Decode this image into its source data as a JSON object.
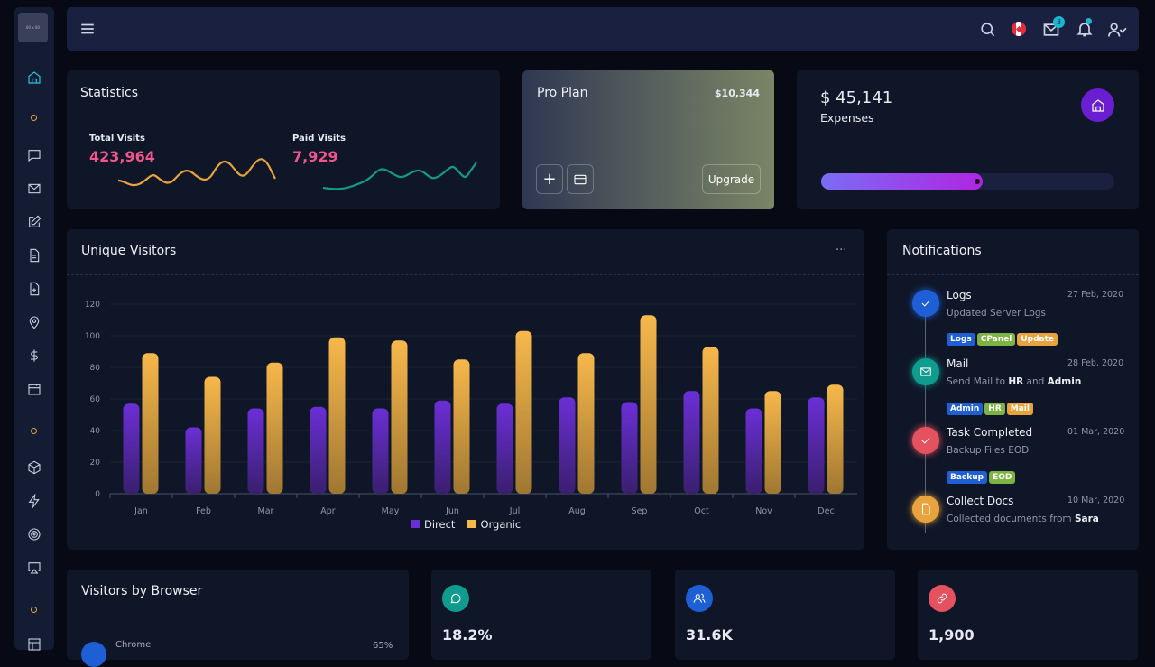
{
  "sidebar": {
    "logo_text": "80 x 80",
    "icons": [
      "home-icon",
      "dot",
      "chat-icon",
      "mail-icon",
      "edit-icon",
      "file-icon",
      "file-plus-icon",
      "map-pin-icon",
      "dollar-icon",
      "calendar-icon",
      "dot",
      "box-icon",
      "zap-icon",
      "target-icon",
      "airplay-icon",
      "dot",
      "layout-icon"
    ],
    "active": "home-icon"
  },
  "topbar": {
    "icons": [
      "menu-icon",
      "search-icon",
      "canada-flag-icon",
      "mail-icon",
      "bell-icon",
      "user-check-icon"
    ],
    "mail_badge": "3"
  },
  "statistics": {
    "title": "Statistics",
    "total_label": "Total Visits",
    "total_value": "423,964",
    "paid_label": "Paid Visits",
    "paid_value": "7,929"
  },
  "pro_plan": {
    "title": "Pro Plan",
    "price": "$10,344",
    "upgrade_label": "Upgrade"
  },
  "expenses": {
    "amount": "$ 45,141",
    "label": "Expenses",
    "progress_percent": 55
  },
  "visitors_chart": {
    "title": "Unique Visitors",
    "menu": "···"
  },
  "chart_data": {
    "type": "bar",
    "categories": [
      "Jan",
      "Feb",
      "Mar",
      "Apr",
      "May",
      "Jun",
      "Jul",
      "Aug",
      "Sep",
      "Oct",
      "Nov",
      "Dec"
    ],
    "series": [
      {
        "name": "Direct",
        "color": "#6b2fd6",
        "values": [
          57,
          42,
          54,
          55,
          54,
          59,
          57,
          61,
          58,
          65,
          54,
          61
        ]
      },
      {
        "name": "Organic",
        "color": "#f7b84b",
        "values": [
          89,
          74,
          83,
          99,
          97,
          85,
          103,
          89,
          113,
          93,
          65,
          69
        ]
      }
    ],
    "yticks": [
      0,
      20,
      40,
      60,
      80,
      100,
      120
    ],
    "ylim": [
      0,
      120
    ],
    "grid": true,
    "legend": "bottom"
  },
  "notifications": {
    "title": "Notifications",
    "items": [
      {
        "title": "Logs",
        "date": "27 Feb, 2020",
        "desc": "Updated Server Logs",
        "tags": [
          {
            "label": "Logs",
            "color": "#1f5fd6"
          },
          {
            "label": "CPanel",
            "color": "#7cb342"
          },
          {
            "label": "Update",
            "color": "#e8a33d"
          }
        ],
        "color": "#1f5fd6",
        "icon": "check-icon"
      },
      {
        "title": "Mail",
        "date": "28 Feb, 2020",
        "desc_parts": [
          "Send Mail to ",
          "HR",
          " and ",
          "Admin"
        ],
        "tags": [
          {
            "label": "Admin",
            "color": "#1f5fd6"
          },
          {
            "label": "HR",
            "color": "#7cb342"
          },
          {
            "label": "Mail",
            "color": "#e8a33d"
          }
        ],
        "color": "#0f9b8e",
        "icon": "mail-icon"
      },
      {
        "title": "Task Completed",
        "date": "01 Mar, 2020",
        "desc": "Backup Files EOD",
        "tags": [
          {
            "label": "Backup",
            "color": "#1f5fd6"
          },
          {
            "label": "EOD",
            "color": "#7cb342"
          }
        ],
        "color": "#e5525f",
        "icon": "check-icon"
      },
      {
        "title": "Collect Docs",
        "date": "10 Mar, 2020",
        "desc_parts": [
          "Collected documents from ",
          "Sara"
        ],
        "color": "#e8a33d",
        "icon": "file-icon"
      }
    ]
  },
  "browser": {
    "title": "Visitors by Browser",
    "items": [
      {
        "name": "Chrome",
        "value": "65%"
      }
    ]
  },
  "stat_cards": [
    {
      "value": "18.2%",
      "icon": "message-circle-icon",
      "color": "#0f9b8e"
    },
    {
      "value": "31.6K",
      "icon": "users-icon",
      "color": "#1f5fd6"
    },
    {
      "value": "1,900",
      "icon": "link-icon",
      "color": "#e5525f"
    }
  ]
}
